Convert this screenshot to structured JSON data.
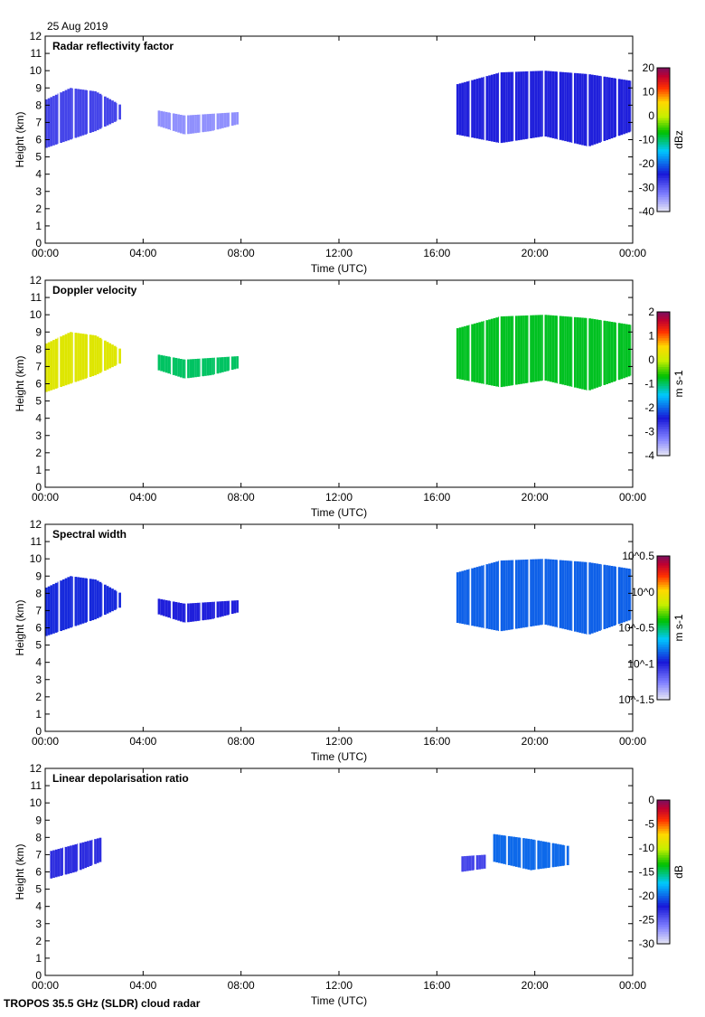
{
  "header": {
    "date": "25 Aug 2019"
  },
  "footer": {
    "instrument": "TROPOS 35.5 GHz (SLDR) cloud radar"
  },
  "colors": {
    "background": "#ffffff",
    "frame": "#000000",
    "missing_data": "#d8d8d8"
  },
  "chart_data": [
    {
      "type": "heatmap",
      "title": "Radar reflectivity factor",
      "xlabel": "Time (UTC)",
      "ylabel": "Height (km)",
      "x_ticks": [
        "00:00",
        "04:00",
        "08:00",
        "12:00",
        "16:00",
        "20:00",
        "00:00"
      ],
      "y_ticks": [
        "0",
        "1",
        "2",
        "3",
        "4",
        "5",
        "6",
        "7",
        "8",
        "9",
        "10",
        "11",
        "12"
      ],
      "xlim": [
        0,
        24
      ],
      "ylim": [
        0,
        12
      ],
      "colorbar": {
        "unit": "dBz",
        "ticks": [
          "20",
          "10",
          "0",
          "-10",
          "-20",
          "-30",
          "-40"
        ],
        "range": [
          -40,
          20
        ]
      },
      "cloud_regions": [
        {
          "t": [
            0.0,
            3.1
          ],
          "base": [
            5.5,
            6.0,
            6.5,
            7.2
          ],
          "top": [
            8.3,
            9.0,
            8.8,
            8.0
          ],
          "value": -28
        },
        {
          "t": [
            4.6,
            7.9
          ],
          "base": [
            6.8,
            6.3,
            6.5,
            6.9
          ],
          "top": [
            7.7,
            7.4,
            7.5,
            7.6
          ],
          "value": -34
        },
        {
          "t": [
            16.8,
            24.0
          ],
          "base": [
            6.3,
            5.8,
            6.2,
            5.6,
            6.5
          ],
          "top": [
            9.2,
            9.9,
            10.0,
            9.8,
            9.4
          ],
          "value": -25
        }
      ]
    },
    {
      "type": "heatmap",
      "title": "Doppler velocity",
      "xlabel": "Time (UTC)",
      "ylabel": "Height (km)",
      "x_ticks": [
        "00:00",
        "04:00",
        "08:00",
        "12:00",
        "16:00",
        "20:00",
        "00:00"
      ],
      "y_ticks": [
        "0",
        "1",
        "2",
        "3",
        "4",
        "5",
        "6",
        "7",
        "8",
        "9",
        "10",
        "11",
        "12"
      ],
      "xlim": [
        0,
        24
      ],
      "ylim": [
        0,
        12
      ],
      "colorbar": {
        "unit": "m s-1",
        "ticks": [
          "2",
          "1",
          "0",
          "-1",
          "-2",
          "-3",
          "-4"
        ],
        "range": [
          -4,
          2
        ]
      },
      "cloud_regions": [
        {
          "t": [
            0.0,
            3.1
          ],
          "base": [
            5.5,
            6.0,
            6.5,
            7.2
          ],
          "top": [
            8.3,
            9.0,
            8.8,
            8.0
          ],
          "value": 0.2
        },
        {
          "t": [
            4.6,
            7.9
          ],
          "base": [
            6.8,
            6.3,
            6.5,
            6.9
          ],
          "top": [
            7.7,
            7.4,
            7.5,
            7.6
          ],
          "value": -1.0
        },
        {
          "t": [
            16.8,
            24.0
          ],
          "base": [
            6.3,
            5.8,
            6.2,
            5.6,
            6.5
          ],
          "top": [
            9.2,
            9.9,
            10.0,
            9.8,
            9.4
          ],
          "value": -0.8
        }
      ]
    },
    {
      "type": "heatmap",
      "title": "Spectral width",
      "xlabel": "Time (UTC)",
      "ylabel": "Height (km)",
      "x_ticks": [
        "00:00",
        "04:00",
        "08:00",
        "12:00",
        "16:00",
        "20:00",
        "00:00"
      ],
      "y_ticks": [
        "0",
        "1",
        "2",
        "3",
        "4",
        "5",
        "6",
        "7",
        "8",
        "9",
        "10",
        "11",
        "12"
      ],
      "xlim": [
        0,
        24
      ],
      "ylim": [
        0,
        12
      ],
      "colorbar": {
        "unit": "m s-1",
        "ticks": [
          "10^0.5",
          "10^0",
          "10^-0.5",
          "10^-1",
          "10^-1.5"
        ],
        "range": [
          -1.5,
          0.5
        ],
        "scale": "log"
      },
      "cloud_regions": [
        {
          "t": [
            0.0,
            3.1
          ],
          "base": [
            5.5,
            6.0,
            6.5,
            7.2
          ],
          "top": [
            8.3,
            9.0,
            8.8,
            8.0
          ],
          "value": -0.95
        },
        {
          "t": [
            4.6,
            7.9
          ],
          "base": [
            6.8,
            6.3,
            6.5,
            6.9
          ],
          "top": [
            7.7,
            7.4,
            7.5,
            7.6
          ],
          "value": -1.0
        },
        {
          "t": [
            16.8,
            24.0
          ],
          "base": [
            6.3,
            5.8,
            6.2,
            5.6,
            6.5
          ],
          "top": [
            9.2,
            9.9,
            10.0,
            9.8,
            9.4
          ],
          "value": -0.85
        }
      ]
    },
    {
      "type": "heatmap",
      "title": "Linear depolarisation ratio",
      "xlabel": "Time (UTC)",
      "ylabel": "Height (km)",
      "x_ticks": [
        "00:00",
        "04:00",
        "08:00",
        "12:00",
        "16:00",
        "20:00",
        "00:00"
      ],
      "y_ticks": [
        "0",
        "1",
        "2",
        "3",
        "4",
        "5",
        "6",
        "7",
        "8",
        "9",
        "10",
        "11",
        "12"
      ],
      "xlim": [
        0,
        24
      ],
      "ylim": [
        0,
        12
      ],
      "colorbar": {
        "unit": "dB",
        "ticks": [
          "0",
          "-5",
          "-10",
          "-15",
          "-20",
          "-25",
          "-30"
        ],
        "range": [
          -30,
          0
        ]
      },
      "cloud_regions": [
        {
          "t": [
            0.2,
            2.3
          ],
          "base": [
            5.6,
            6.0,
            6.6
          ],
          "top": [
            7.2,
            7.6,
            8.0
          ],
          "value": -23
        },
        {
          "t": [
            17.0,
            18.0
          ],
          "base": [
            6.0,
            6.2
          ],
          "top": [
            6.9,
            7.0
          ],
          "value": -24
        },
        {
          "t": [
            18.3,
            21.4
          ],
          "base": [
            6.6,
            6.1,
            6.4
          ],
          "top": [
            8.2,
            7.9,
            7.5
          ],
          "value": -20
        }
      ]
    }
  ]
}
